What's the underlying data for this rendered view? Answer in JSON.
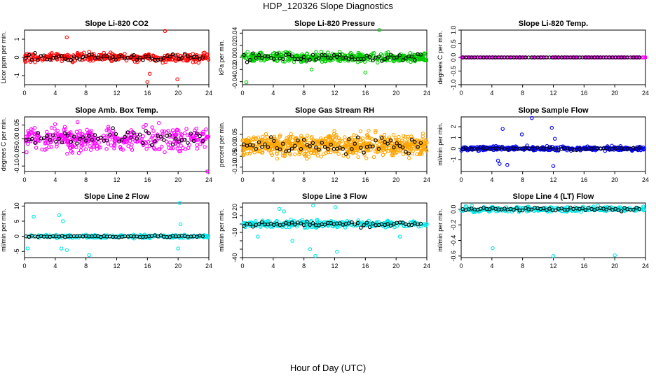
{
  "figure": {
    "title": "HDP_120326  Slope Diagnostics",
    "xlabel": "Hour of Day (UTC)"
  },
  "chart_data": [
    {
      "type": "scatter",
      "title": "Slope Li-820 CO2",
      "ylabel": "Licor ppm per min.",
      "color": "#ff0000",
      "xlim": [
        0,
        24
      ],
      "ylim": [
        -1.5,
        1.5
      ],
      "yticks": [
        -1,
        0,
        1
      ],
      "yticklabels": [
        "-1",
        "0",
        "1"
      ],
      "xticks": [
        0,
        4,
        8,
        12,
        16,
        20,
        24
      ],
      "xticklabels": [
        "0",
        "4",
        "8",
        "12",
        "16",
        "20",
        "24"
      ],
      "spread": 0.22,
      "n_points": 320,
      "outliers": [
        [
          5.5,
          1.1
        ],
        [
          18.3,
          1.45
        ],
        [
          19.9,
          -1.2
        ],
        [
          16.3,
          -0.9
        ],
        [
          16.0,
          -1.35
        ]
      ],
      "black_spread": 0.18
    },
    {
      "type": "scatter",
      "title": "Slope Li-820 Pressure",
      "ylabel": "kPa per min.",
      "color": "#00cc00",
      "xlim": [
        0,
        24
      ],
      "ylim": [
        -0.045,
        0.045
      ],
      "yticks": [
        -0.04,
        -0.02,
        0,
        0.02,
        0.04
      ],
      "yticklabels": [
        "-0.04",
        "-0.02",
        "0.00",
        "0.02",
        "0.04"
      ],
      "xticks": [
        0,
        4,
        8,
        12,
        16,
        20,
        24
      ],
      "xticklabels": [
        "0",
        "4",
        "8",
        "12",
        "16",
        "20",
        "24"
      ],
      "spread": 0.007,
      "n_points": 420,
      "outliers": [
        [
          17.8,
          0.045
        ],
        [
          0.5,
          -0.041
        ],
        [
          16.0,
          -0.025
        ],
        [
          9.0,
          -0.02
        ]
      ],
      "black_spread": 0.006
    },
    {
      "type": "scatter",
      "title": "Slope Li-820 Temp.",
      "ylabel": "degrees C per min.",
      "color": "#ff00ff",
      "xlim": [
        0,
        24
      ],
      "ylim": [
        -1.0,
        1.0
      ],
      "yticks": [
        -1,
        -0.5,
        0,
        0.5,
        1
      ],
      "yticklabels": [
        "-1.0",
        "-0.5",
        "0.0",
        "0.5",
        "1.0"
      ],
      "xticks": [
        0,
        4,
        8,
        12,
        16,
        20,
        24
      ],
      "xticklabels": [
        "0",
        "4",
        "8",
        "12",
        "16",
        "20",
        "24"
      ],
      "spread": 0.0,
      "n_points": 200,
      "outliers": [],
      "black_spread": 0.0
    },
    {
      "type": "scatter",
      "title": "Slope Amb. Box Temp.",
      "ylabel": "degrees C per min.",
      "color": "#ff00ff",
      "xlim": [
        0,
        24
      ],
      "ylim": [
        -0.12,
        0.08
      ],
      "yticks": [
        -0.1,
        -0.05,
        0,
        0.05
      ],
      "yticklabels": [
        "-0.10",
        "-0.05",
        "0.00",
        "0.05"
      ],
      "xticks": [
        0,
        4,
        8,
        12,
        16,
        20,
        24
      ],
      "xticklabels": [
        "0",
        "4",
        "8",
        "12",
        "16",
        "20",
        "24"
      ],
      "spread": 0.04,
      "n_points": 380,
      "outliers": [
        [
          23.8,
          -0.12
        ]
      ],
      "black_spread": 0.03
    },
    {
      "type": "scatter",
      "title": "Slope Gas Stream RH",
      "ylabel": "percent per min.",
      "color": "#ffa500",
      "xlim": [
        0,
        24
      ],
      "ylim": [
        -0.12,
        0.13
      ],
      "yticks": [
        -0.1,
        -0.05,
        0,
        0.05
      ],
      "yticklabels": [
        "-0.10",
        "-0.05",
        "0.00",
        "0.05"
      ],
      "xticks": [
        0,
        4,
        8,
        12,
        16,
        20,
        24
      ],
      "xticklabels": [
        "0",
        "4",
        "8",
        "12",
        "16",
        "20",
        "24"
      ],
      "spread": 0.045,
      "n_points": 700,
      "outliers": [],
      "black_spread": 0.035
    },
    {
      "type": "scatter",
      "title": "Slope Sample Flow",
      "ylabel": "ml/min per min.",
      "color": "#0000ff",
      "xlim": [
        0,
        24
      ],
      "ylim": [
        -2.1,
        2.9
      ],
      "yticks": [
        -1,
        0,
        1,
        2
      ],
      "yticklabels": [
        "-1",
        "0",
        "1",
        "2"
      ],
      "xticks": [
        0,
        4,
        8,
        12,
        16,
        20,
        24
      ],
      "xticklabels": [
        "0",
        "4",
        "8",
        "12",
        "16",
        "20",
        "24"
      ],
      "spread": 0.18,
      "n_points": 360,
      "outliers": [
        [
          9.2,
          2.8
        ],
        [
          5.4,
          1.8
        ],
        [
          5.0,
          -1.4
        ],
        [
          4.8,
          -1.1
        ],
        [
          6.0,
          -1.5
        ],
        [
          12.0,
          -1.6
        ],
        [
          11.8,
          1.9
        ],
        [
          7.9,
          1.3
        ],
        [
          12.2,
          0.9
        ]
      ],
      "black_spread": 0.12
    },
    {
      "type": "scatter",
      "title": "Slope Line 2 Flow",
      "ylabel": "ml/min per min.",
      "color": "#00e5e5",
      "xlim": [
        0,
        24
      ],
      "ylim": [
        -7,
        11
      ],
      "yticks": [
        -5,
        0,
        5,
        10
      ],
      "yticklabels": [
        "-5",
        "0",
        "5",
        "10"
      ],
      "xticks": [
        0,
        4,
        8,
        12,
        16,
        20,
        24
      ],
      "xticklabels": [
        "0",
        "4",
        "8",
        "12",
        "16",
        "20",
        "24"
      ],
      "spread": 0.5,
      "n_points": 240,
      "outliers": [
        [
          1.2,
          6.5
        ],
        [
          4.5,
          7.0
        ],
        [
          5.0,
          5.0
        ],
        [
          4.8,
          -4.0
        ],
        [
          5.5,
          -4.5
        ],
        [
          8.4,
          -6.2
        ],
        [
          20.2,
          11.0
        ],
        [
          20.3,
          4.0
        ],
        [
          20.0,
          -4.0
        ],
        [
          0.4,
          -4.0
        ]
      ],
      "black_spread": 0.3
    },
    {
      "type": "scatter",
      "title": "Slope Line 3 Flow",
      "ylabel": "ml/min per min.",
      "color": "#00e5e5",
      "xlim": [
        0,
        24
      ],
      "ylim": [
        -40,
        25
      ],
      "yticks": [
        -40,
        -30,
        -20,
        -10,
        0,
        10,
        20
      ],
      "yticklabels": [
        "-40",
        "",
        "",
        "-10",
        "",
        "10",
        "20"
      ],
      "xticks": [
        0,
        4,
        8,
        12,
        16,
        20,
        24
      ],
      "xticklabels": [
        "0",
        "4",
        "8",
        "12",
        "16",
        "20",
        "24"
      ],
      "spread": 4,
      "n_points": 300,
      "outliers": [
        [
          9.5,
          -38
        ],
        [
          8.8,
          -30
        ],
        [
          12.3,
          -33
        ],
        [
          9.2,
          22
        ],
        [
          12.1,
          20
        ],
        [
          20.5,
          -15
        ],
        [
          4.8,
          18
        ],
        [
          5.4,
          15
        ],
        [
          6.5,
          -20
        ],
        [
          2.0,
          -15
        ]
      ],
      "black_spread": 3
    },
    {
      "type": "scatter",
      "title": "Slope Line 4 (LT) Flow",
      "ylabel": "ml/min per min.",
      "color": "#00e5e5",
      "xlim": [
        0,
        24
      ],
      "ylim": [
        -0.62,
        0.08
      ],
      "yticks": [
        -0.6,
        -0.4,
        -0.2,
        0
      ],
      "yticklabels": [
        "-0.6",
        "-0.4",
        "-0.2",
        "0.0"
      ],
      "xticks": [
        0,
        4,
        8,
        12,
        16,
        20,
        24
      ],
      "xticklabels": [
        "0",
        "4",
        "8",
        "12",
        "16",
        "20",
        "24"
      ],
      "spread": 0.03,
      "n_points": 300,
      "outliers": [
        [
          4.1,
          -0.5
        ],
        [
          12.0,
          -0.6
        ],
        [
          20.0,
          -0.59
        ]
      ],
      "black_spread": 0.02
    }
  ]
}
